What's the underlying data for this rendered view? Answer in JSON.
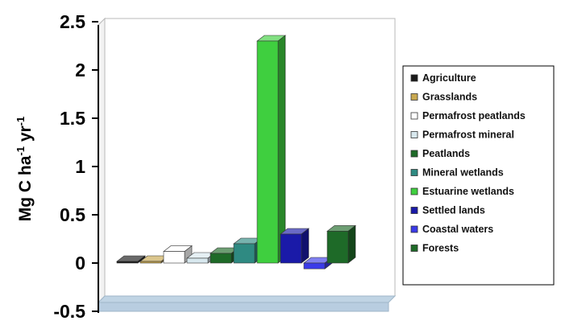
{
  "chart_data": {
    "type": "bar",
    "ylabel": {
      "base": "Mg C ha",
      "sup1": "-1",
      "mid": " yr",
      "sup2": "-1"
    },
    "ylim": [
      -0.5,
      2.5
    ],
    "yticks": [
      "2.5",
      "2",
      "1.5",
      "1",
      "0.5",
      "0",
      "-0.5"
    ],
    "ytick_values": [
      2.5,
      2,
      1.5,
      1,
      0.5,
      0,
      -0.5
    ],
    "grid": false,
    "legend_position": "right",
    "series": [
      {
        "name": "Agriculture",
        "value": 0.0,
        "color": "#1a1a1a"
      },
      {
        "name": "Grasslands",
        "value": 0.01,
        "color": "#c8a850"
      },
      {
        "name": "Permafrost peatlands",
        "value": 0.12,
        "color": "#ffffff"
      },
      {
        "name": "Permafrost mineral",
        "value": 0.05,
        "color": "#d8e8ee"
      },
      {
        "name": "Peatlands",
        "value": 0.1,
        "color": "#1e6a28"
      },
      {
        "name": "Mineral wetlands",
        "value": 0.2,
        "color": "#2f8a82"
      },
      {
        "name": "Estuarine wetlands",
        "value": 2.3,
        "color": "#3fcf3f"
      },
      {
        "name": "Settled lands",
        "value": 0.3,
        "color": "#1a1aa8"
      },
      {
        "name": "Coastal waters",
        "value": -0.06,
        "color": "#3a3ae8"
      },
      {
        "name": "Forests",
        "value": 0.33,
        "color": "#1e6a28"
      }
    ]
  }
}
